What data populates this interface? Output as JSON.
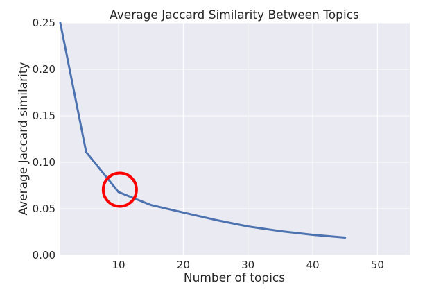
{
  "chart_data": {
    "type": "line",
    "title": "Average Jaccard Similarity Between Topics",
    "xlabel": "Number of topics",
    "ylabel": "Average Jaccard similarity",
    "xlim": [
      1,
      55
    ],
    "ylim": [
      0,
      0.25
    ],
    "xticks": [
      10,
      20,
      30,
      40,
      50
    ],
    "yticks": [
      0.0,
      0.05,
      0.1,
      0.15,
      0.2,
      0.25
    ],
    "ytick_labels": [
      "0.00",
      "0.05",
      "0.10",
      "0.15",
      "0.20",
      "0.25"
    ],
    "grid": true,
    "series": [
      {
        "color": "#4c72b0",
        "x": [
          1,
          5,
          10,
          15,
          20,
          25,
          30,
          35,
          40,
          45
        ],
        "y": [
          0.25,
          0.111,
          0.068,
          0.054,
          0.046,
          0.038,
          0.031,
          0.026,
          0.022,
          0.019
        ]
      }
    ],
    "annotations": [
      {
        "type": "circle",
        "color": "#ff0000",
        "x": 10.2,
        "y": 0.0705
      }
    ]
  },
  "style": {
    "plot_background": "#eaeaf2",
    "grid_color": "#ffffff"
  }
}
